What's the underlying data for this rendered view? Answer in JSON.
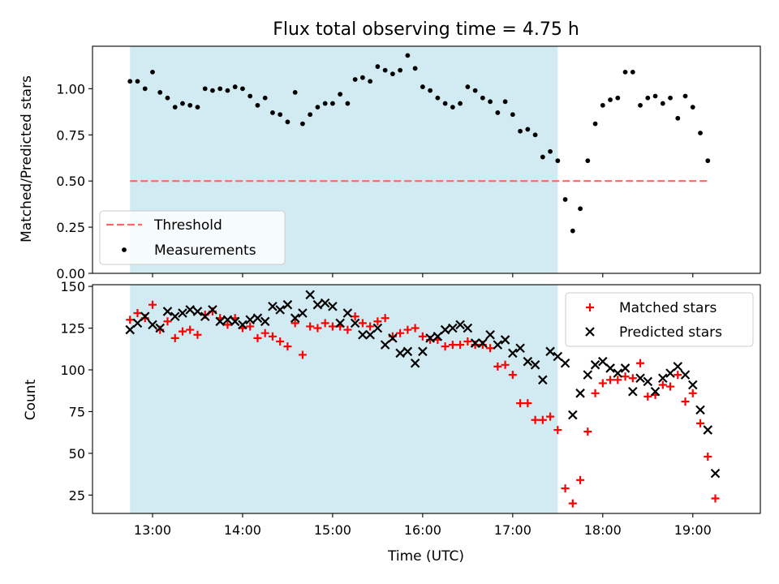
{
  "chart_data": [
    {
      "type": "scatter",
      "title": "Flux total observing time = 4.75 h",
      "xlabel": "",
      "ylabel": "Matched/Predicted stars",
      "ylim": [
        0,
        1.23
      ],
      "yticks": [
        "0.00",
        "0.25",
        "0.50",
        "0.75",
        "1.00"
      ],
      "ytick_values": [
        0,
        0.25,
        0.5,
        0.75,
        1.0
      ],
      "shaded_span": {
        "x_start": "12:45",
        "x_end": "17:30",
        "color": "#add8e6"
      },
      "threshold": {
        "name": "Threshold",
        "y": 0.5,
        "x_start": "12:45",
        "x_end": "19:10",
        "color": "#ff6666",
        "style": "dashed"
      },
      "legend_position": "lower-left",
      "series": [
        {
          "name": "Measurements",
          "color": "#000000",
          "marker": "dot",
          "points": [
            [
              "12:45",
              1.04
            ],
            [
              "12:50",
              1.04
            ],
            [
              "12:55",
              1.0
            ],
            [
              "13:00",
              1.09
            ],
            [
              "13:05",
              0.98
            ],
            [
              "13:10",
              0.95
            ],
            [
              "13:15",
              0.9
            ],
            [
              "13:20",
              0.92
            ],
            [
              "13:25",
              0.91
            ],
            [
              "13:30",
              0.9
            ],
            [
              "13:35",
              1.0
            ],
            [
              "13:40",
              0.99
            ],
            [
              "13:45",
              1.0
            ],
            [
              "13:50",
              0.99
            ],
            [
              "13:55",
              1.01
            ],
            [
              "14:00",
              1.0
            ],
            [
              "14:05",
              0.96
            ],
            [
              "14:10",
              0.91
            ],
            [
              "14:15",
              0.95
            ],
            [
              "14:20",
              0.87
            ],
            [
              "14:25",
              0.86
            ],
            [
              "14:30",
              0.82
            ],
            [
              "14:35",
              0.98
            ],
            [
              "14:40",
              0.81
            ],
            [
              "14:45",
              0.86
            ],
            [
              "14:50",
              0.9
            ],
            [
              "14:55",
              0.92
            ],
            [
              "15:00",
              0.92
            ],
            [
              "15:05",
              0.97
            ],
            [
              "15:10",
              0.92
            ],
            [
              "15:15",
              1.05
            ],
            [
              "15:20",
              1.06
            ],
            [
              "15:25",
              1.04
            ],
            [
              "15:30",
              1.12
            ],
            [
              "15:35",
              1.1
            ],
            [
              "15:40",
              1.08
            ],
            [
              "15:45",
              1.1
            ],
            [
              "15:50",
              1.18
            ],
            [
              "15:55",
              1.11
            ],
            [
              "16:00",
              1.01
            ],
            [
              "16:05",
              0.99
            ],
            [
              "16:10",
              0.95
            ],
            [
              "16:15",
              0.92
            ],
            [
              "16:20",
              0.9
            ],
            [
              "16:25",
              0.92
            ],
            [
              "16:30",
              1.01
            ],
            [
              "16:35",
              0.99
            ],
            [
              "16:40",
              0.95
            ],
            [
              "16:45",
              0.93
            ],
            [
              "16:50",
              0.87
            ],
            [
              "16:55",
              0.93
            ],
            [
              "17:00",
              0.86
            ],
            [
              "17:05",
              0.77
            ],
            [
              "17:10",
              0.78
            ],
            [
              "17:15",
              0.75
            ],
            [
              "17:20",
              0.63
            ],
            [
              "17:25",
              0.66
            ],
            [
              "17:30",
              0.61
            ],
            [
              "17:35",
              0.4
            ],
            [
              "17:40",
              0.23
            ],
            [
              "17:45",
              0.35
            ],
            [
              "17:50",
              0.61
            ],
            [
              "17:55",
              0.81
            ],
            [
              "18:00",
              0.91
            ],
            [
              "18:05",
              0.94
            ],
            [
              "18:10",
              0.95
            ],
            [
              "18:15",
              1.09
            ],
            [
              "18:20",
              1.09
            ],
            [
              "18:25",
              0.91
            ],
            [
              "18:30",
              0.95
            ],
            [
              "18:35",
              0.96
            ],
            [
              "18:40",
              0.92
            ],
            [
              "18:45",
              0.95
            ],
            [
              "18:50",
              0.84
            ],
            [
              "18:55",
              0.96
            ],
            [
              "19:00",
              0.9
            ],
            [
              "19:05",
              0.76
            ],
            [
              "19:10",
              0.61
            ]
          ]
        }
      ],
      "legend": [
        "Threshold",
        "Measurements"
      ]
    },
    {
      "type": "scatter",
      "title": "",
      "xlabel": "Time (UTC)",
      "ylabel": "Count",
      "ylim": [
        14,
        151
      ],
      "yticks": [
        "25",
        "50",
        "75",
        "100",
        "125",
        "150"
      ],
      "ytick_values": [
        25,
        50,
        75,
        100,
        125,
        150
      ],
      "xticks": [
        "13:00",
        "14:00",
        "15:00",
        "16:00",
        "17:00",
        "18:00",
        "19:00"
      ],
      "xlim": [
        "12:20",
        "19:45"
      ],
      "shaded_span": {
        "x_start": "12:45",
        "x_end": "17:30",
        "color": "#add8e6"
      },
      "legend_position": "upper-right",
      "series": [
        {
          "name": "Matched stars",
          "color": "#ff0000",
          "marker": "plus",
          "points": [
            [
              "12:45",
              130
            ],
            [
              "12:50",
              134
            ],
            [
              "12:55",
              131
            ],
            [
              "13:00",
              139
            ],
            [
              "13:05",
              124
            ],
            [
              "13:10",
              129
            ],
            [
              "13:15",
              119
            ],
            [
              "13:20",
              123
            ],
            [
              "13:25",
              124
            ],
            [
              "13:30",
              121
            ],
            [
              "13:35",
              133
            ],
            [
              "13:40",
              135
            ],
            [
              "13:45",
              131
            ],
            [
              "13:50",
              127
            ],
            [
              "13:55",
              131
            ],
            [
              "14:00",
              125
            ],
            [
              "14:05",
              126
            ],
            [
              "14:10",
              119
            ],
            [
              "14:15",
              122
            ],
            [
              "14:20",
              120
            ],
            [
              "14:25",
              117
            ],
            [
              "14:30",
              114
            ],
            [
              "14:35",
              128
            ],
            [
              "14:40",
              109
            ],
            [
              "14:45",
              126
            ],
            [
              "14:50",
              125
            ],
            [
              "14:55",
              128
            ],
            [
              "15:00",
              126
            ],
            [
              "15:05",
              126
            ],
            [
              "15:10",
              124
            ],
            [
              "15:15",
              132
            ],
            [
              "15:20",
              128
            ],
            [
              "15:25",
              126
            ],
            [
              "15:30",
              129
            ],
            [
              "15:35",
              131
            ],
            [
              "15:40",
              120
            ],
            [
              "15:45",
              122
            ],
            [
              "15:50",
              124
            ],
            [
              "15:55",
              125
            ],
            [
              "16:00",
              120
            ],
            [
              "16:05",
              118
            ],
            [
              "16:10",
              118
            ],
            [
              "16:15",
              114
            ],
            [
              "16:20",
              115
            ],
            [
              "16:25",
              115
            ],
            [
              "16:30",
              117
            ],
            [
              "16:35",
              115
            ],
            [
              "16:40",
              115
            ],
            [
              "16:45",
              113
            ],
            [
              "16:50",
              102
            ],
            [
              "16:55",
              103
            ],
            [
              "17:00",
              97
            ],
            [
              "17:05",
              80
            ],
            [
              "17:10",
              80
            ],
            [
              "17:15",
              70
            ],
            [
              "17:20",
              70
            ],
            [
              "17:25",
              72
            ],
            [
              "17:30",
              64
            ],
            [
              "17:35",
              29
            ],
            [
              "17:40",
              20
            ],
            [
              "17:45",
              34
            ],
            [
              "17:50",
              63
            ],
            [
              "17:55",
              86
            ],
            [
              "18:00",
              92
            ],
            [
              "18:05",
              94
            ],
            [
              "18:10",
              94
            ],
            [
              "18:15",
              96
            ],
            [
              "18:20",
              95
            ],
            [
              "18:25",
              104
            ],
            [
              "18:30",
              84
            ],
            [
              "18:35",
              85
            ],
            [
              "18:40",
              91
            ],
            [
              "18:45",
              90
            ],
            [
              "18:50",
              97
            ],
            [
              "18:55",
              81
            ],
            [
              "19:00",
              86
            ],
            [
              "19:05",
              68
            ],
            [
              "19:10",
              48
            ],
            [
              "19:15",
              23
            ]
          ]
        },
        {
          "name": "Predicted stars",
          "color": "#000000",
          "marker": "x",
          "points": [
            [
              "12:45",
              124
            ],
            [
              "12:50",
              128
            ],
            [
              "12:55",
              132
            ],
            [
              "13:00",
              127
            ],
            [
              "13:05",
              125
            ],
            [
              "13:10",
              135
            ],
            [
              "13:15",
              132
            ],
            [
              "13:20",
              134
            ],
            [
              "13:25",
              136
            ],
            [
              "13:30",
              135
            ],
            [
              "13:35",
              132
            ],
            [
              "13:40",
              136
            ],
            [
              "13:45",
              129
            ],
            [
              "13:50",
              130
            ],
            [
              "13:55",
              129
            ],
            [
              "14:00",
              127
            ],
            [
              "14:05",
              130
            ],
            [
              "14:10",
              131
            ],
            [
              "14:15",
              129
            ],
            [
              "14:20",
              138
            ],
            [
              "14:25",
              136
            ],
            [
              "14:30",
              139
            ],
            [
              "14:35",
              131
            ],
            [
              "14:40",
              134
            ],
            [
              "14:45",
              145
            ],
            [
              "14:50",
              139
            ],
            [
              "14:55",
              140
            ],
            [
              "15:00",
              138
            ],
            [
              "15:05",
              128
            ],
            [
              "15:10",
              134
            ],
            [
              "15:15",
              128
            ],
            [
              "15:20",
              121
            ],
            [
              "15:25",
              121
            ],
            [
              "15:30",
              125
            ],
            [
              "15:35",
              115
            ],
            [
              "15:40",
              119
            ],
            [
              "15:45",
              110
            ],
            [
              "15:50",
              111
            ],
            [
              "15:55",
              104
            ],
            [
              "16:00",
              111
            ],
            [
              "16:05",
              119
            ],
            [
              "16:10",
              120
            ],
            [
              "16:15",
              124
            ],
            [
              "16:20",
              125
            ],
            [
              "16:25",
              127
            ],
            [
              "16:30",
              125
            ],
            [
              "16:35",
              116
            ],
            [
              "16:40",
              116
            ],
            [
              "16:45",
              121
            ],
            [
              "16:50",
              115
            ],
            [
              "16:55",
              118
            ],
            [
              "17:00",
              110
            ],
            [
              "17:05",
              113
            ],
            [
              "17:10",
              105
            ],
            [
              "17:15",
              103
            ],
            [
              "17:20",
              94
            ],
            [
              "17:25",
              111
            ],
            [
              "17:30",
              108
            ],
            [
              "17:35",
              104
            ],
            [
              "17:40",
              73
            ],
            [
              "17:45",
              86
            ],
            [
              "17:50",
              97
            ],
            [
              "17:55",
              103
            ],
            [
              "18:00",
              105
            ],
            [
              "18:05",
              101
            ],
            [
              "18:10",
              98
            ],
            [
              "18:15",
              101
            ],
            [
              "18:20",
              87
            ],
            [
              "18:25",
              95
            ],
            [
              "18:30",
              93
            ],
            [
              "18:35",
              87
            ],
            [
              "18:40",
              95
            ],
            [
              "18:45",
              98
            ],
            [
              "18:50",
              102
            ],
            [
              "18:55",
              97
            ],
            [
              "19:00",
              91
            ],
            [
              "19:05",
              76
            ],
            [
              "19:10",
              64
            ],
            [
              "19:15",
              38
            ]
          ]
        }
      ],
      "legend": [
        "Matched stars",
        "Predicted stars"
      ]
    }
  ]
}
